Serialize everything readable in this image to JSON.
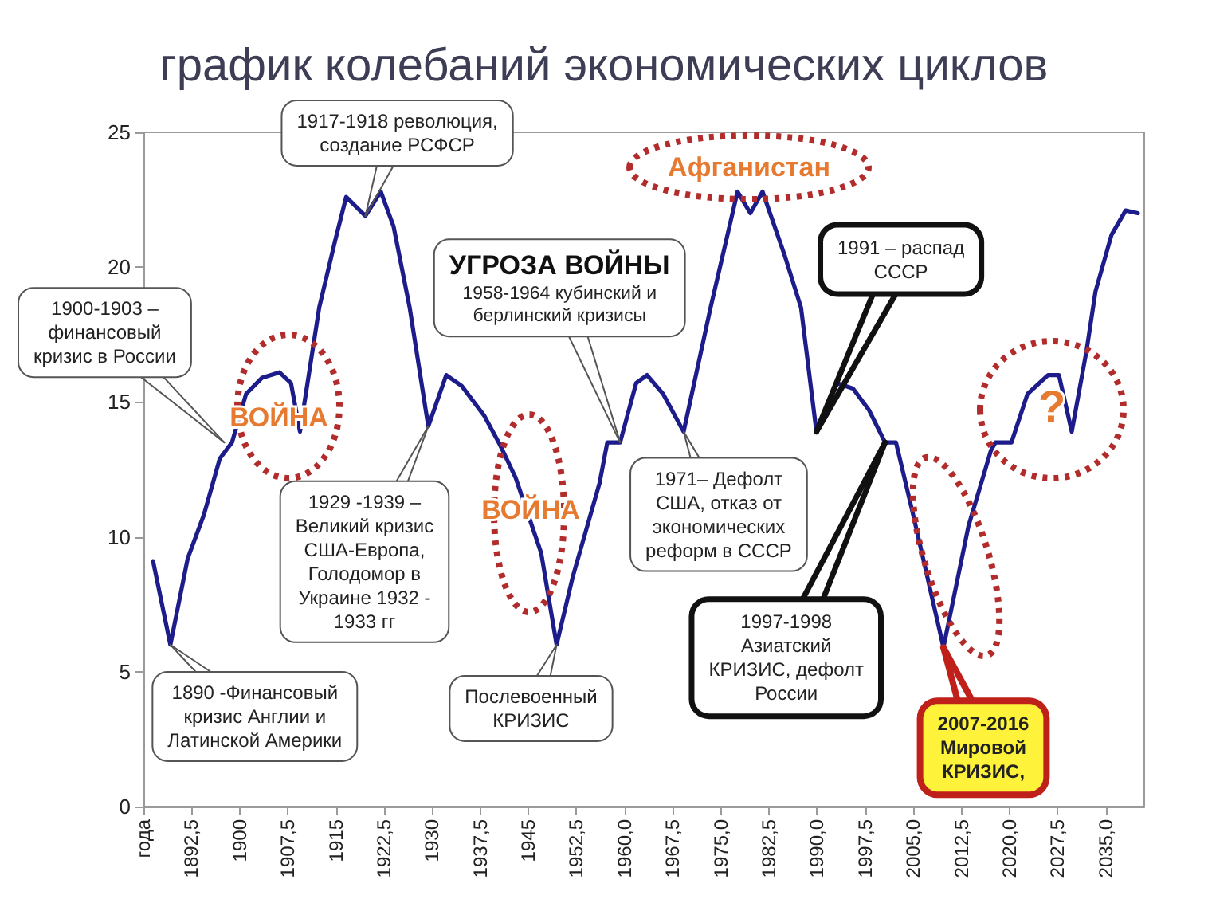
{
  "chart_data": {
    "type": "line",
    "title": "график колебаний экономических циклов",
    "x": [
      1886.5,
      1889.2,
      1891.9,
      1894.4,
      1896.9,
      1898.8,
      1901.0,
      1903.5,
      1906.2,
      1908.0,
      1909.4,
      1912.4,
      1914.9,
      1916.6,
      1919.6,
      1922.0,
      1924.0,
      1926.5,
      1929.4,
      1932.2,
      1934.6,
      1938.1,
      1940.6,
      1943.0,
      1947.0,
      1949.4,
      1951.9,
      1956.1,
      1957.3,
      1959.3,
      1961.8,
      1963.5,
      1966.0,
      1969.2,
      1973.4,
      1977.6,
      1979.6,
      1981.5,
      1985.0,
      1987.5,
      1989.9,
      1993.1,
      1995.6,
      1998.1,
      2000.6,
      2002.3,
      2004.8,
      2009.7,
      2013.6,
      2017.1,
      2017.8,
      2020.3,
      2022.8,
      2026.0,
      2027.7,
      2029.7,
      2032.0,
      2033.4,
      2035.9,
      2038.1,
      2040.0
    ],
    "series": [
      {
        "color": "#1c1c8a",
        "values": [
          9.1,
          6.0,
          9.2,
          10.8,
          12.9,
          13.5,
          15.3,
          15.9,
          16.1,
          15.7,
          13.9,
          18.5,
          21.0,
          22.6,
          21.9,
          22.8,
          21.5,
          18.5,
          14.1,
          16.0,
          15.6,
          14.5,
          13.4,
          12.2,
          9.4,
          6.0,
          8.5,
          12.0,
          13.5,
          13.5,
          15.7,
          16.0,
          15.3,
          13.9,
          18.5,
          22.8,
          22.0,
          22.8,
          20.4,
          18.5,
          13.9,
          15.7,
          15.5,
          14.7,
          13.5,
          13.5,
          11.0,
          5.9,
          10.4,
          13.2,
          13.5,
          13.5,
          15.3,
          16.0,
          16.0,
          13.9,
          16.9,
          19.1,
          21.2,
          22.1,
          22.0
        ]
      }
    ],
    "xlim": [
      1885,
      2041
    ],
    "xticks": [
      {
        "value": 1885,
        "label": "года"
      },
      {
        "value": 1892.5,
        "label": "1892,5"
      },
      1900,
      {
        "value": 1907.5,
        "label": "1907,5"
      },
      1915,
      {
        "value": 1922.5,
        "label": "1922,5"
      },
      1930,
      {
        "value": 1937.5,
        "label": "1937,5"
      },
      1945,
      {
        "value": 1952.5,
        "label": "1952,5"
      },
      {
        "value": 1960,
        "label": "1960,0"
      },
      {
        "value": 1967.5,
        "label": "1967,5"
      },
      {
        "value": 1975,
        "label": "1975,0"
      },
      {
        "value": 1982.5,
        "label": "1982,5"
      },
      {
        "value": 1990,
        "label": "1990,0"
      },
      {
        "value": 1997.5,
        "label": "1997,5"
      },
      {
        "value": 2005,
        "label": "2005,0"
      },
      {
        "value": 2012.5,
        "label": "2012,5"
      },
      {
        "value": 2020,
        "label": "2020,0"
      },
      {
        "value": 2027.5,
        "label": "2027,5"
      },
      {
        "value": 2035,
        "label": "2035,0"
      }
    ],
    "ylim": [
      0,
      25
    ],
    "yticks": [
      0,
      5,
      10,
      15,
      20,
      25
    ],
    "marker": "none",
    "line_style": "solid",
    "annotations": [
      {
        "text": "1917-1918 революция,\nсоздание РСФСР",
        "x": 1919.6,
        "y": 21.9
      },
      {
        "text": "1900-1903 –\nфинансовый\nкризис в России",
        "x": 1897.6,
        "y": 13.5
      },
      {
        "text": "УГРОЗА ВОЙНЫ\n1958-1964 кубинский и\nберлинский кризисы",
        "x": 1959.3,
        "y": 13.5
      },
      {
        "text": "1991 – распад\nСССР",
        "x": 1989.9,
        "y": 13.9
      },
      {
        "text": "1929 -1939 –\nВеликий кризис\nСША-Европа,\nГолодомор в\nУкраине 1932 -\n1933 гг",
        "x": 1929.4,
        "y": 14.1
      },
      {
        "text": "1971– Дефолт\nСША, отказ от\nэкономических\nреформ в СССР",
        "x": 1969.2,
        "y": 13.9
      },
      {
        "text": "1890 -Финансовый\nкризис Англии и\nЛатинской Америки",
        "x": 1889.2,
        "y": 6.0
      },
      {
        "text": "Послевоенный\nКРИЗИС",
        "x": 1949.4,
        "y": 6.0
      },
      {
        "text": "1997-1998\nАзиатский\nКРИЗИС, дефолт\nРоссии",
        "x": 2000.6,
        "y": 13.5
      },
      {
        "text": "2007-2016\nМировой\nКРИЗИС,",
        "x": 2009.7,
        "y": 5.9
      },
      "ВОЙНА",
      "ВОЙНА",
      "Афганистан",
      "?"
    ]
  }
}
